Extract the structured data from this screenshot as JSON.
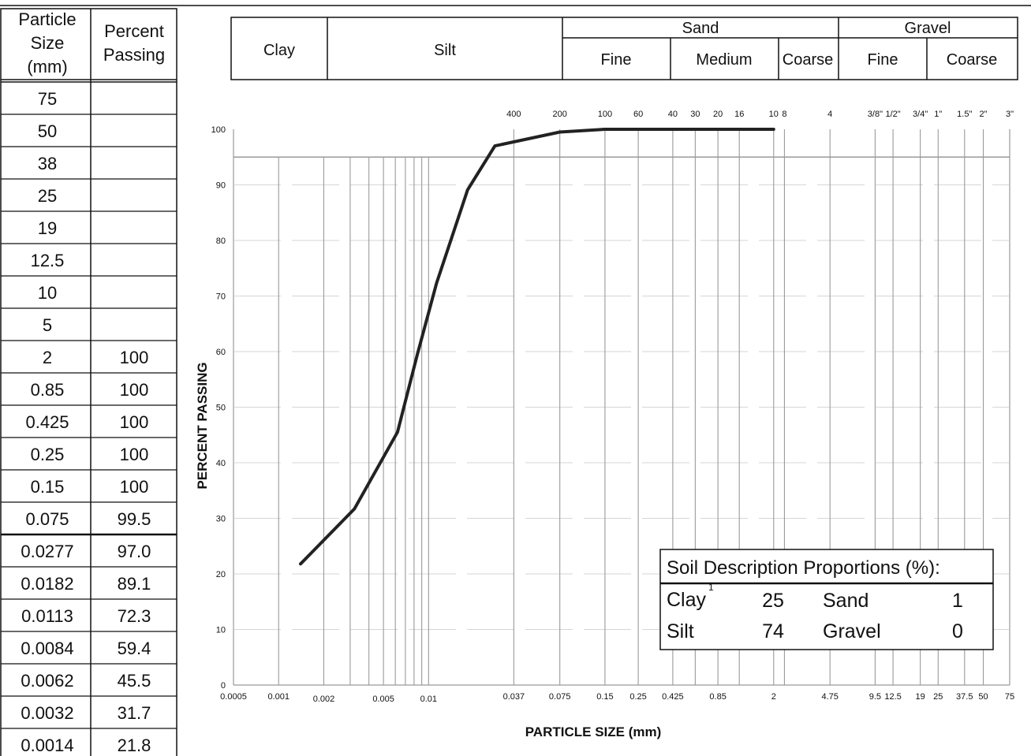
{
  "data_table": {
    "header": {
      "col1": [
        "Particle",
        "Size",
        "(mm)"
      ],
      "col2": [
        "Percent",
        "Passing"
      ]
    },
    "rows": [
      {
        "size": "75",
        "passing": ""
      },
      {
        "size": "50",
        "passing": ""
      },
      {
        "size": "38",
        "passing": ""
      },
      {
        "size": "25",
        "passing": ""
      },
      {
        "size": "19",
        "passing": ""
      },
      {
        "size": "12.5",
        "passing": ""
      },
      {
        "size": "10",
        "passing": ""
      },
      {
        "size": "5",
        "passing": ""
      },
      {
        "size": "2",
        "passing": "100"
      },
      {
        "size": "0.85",
        "passing": "100"
      },
      {
        "size": "0.425",
        "passing": "100"
      },
      {
        "size": "0.25",
        "passing": "100"
      },
      {
        "size": "0.15",
        "passing": "100"
      },
      {
        "size": "0.075",
        "passing": "99.5"
      },
      {
        "size": "0.0277",
        "passing": "97.0"
      },
      {
        "size": "0.0182",
        "passing": "89.1"
      },
      {
        "size": "0.0113",
        "passing": "72.3"
      },
      {
        "size": "0.0084",
        "passing": "59.4"
      },
      {
        "size": "0.0062",
        "passing": "45.5"
      },
      {
        "size": "0.0032",
        "passing": "31.7"
      },
      {
        "size": "0.0014",
        "passing": "21.8"
      }
    ]
  },
  "classification": {
    "clay": "Clay",
    "silt": "Silt",
    "sand": {
      "label": "Sand",
      "subs": [
        "Fine",
        "Medium",
        "Coarse"
      ]
    },
    "gravel": {
      "label": "Gravel",
      "subs": [
        "Fine",
        "Coarse"
      ]
    }
  },
  "sieve_labels": [
    {
      "label": "400",
      "mm": 0.037
    },
    {
      "label": "200",
      "mm": 0.075
    },
    {
      "label": "100",
      "mm": 0.15
    },
    {
      "label": "60",
      "mm": 0.25
    },
    {
      "label": "40",
      "mm": 0.425
    },
    {
      "label": "30",
      "mm": 0.6
    },
    {
      "label": "20",
      "mm": 0.85
    },
    {
      "label": "16",
      "mm": 1.18
    },
    {
      "label": "10",
      "mm": 2
    },
    {
      "label": "8",
      "mm": 2.36
    },
    {
      "label": "4",
      "mm": 4.75
    },
    {
      "label": "3/8\"",
      "mm": 9.5
    },
    {
      "label": "1/2\"",
      "mm": 12.5
    },
    {
      "label": "3/4\"",
      "mm": 19
    },
    {
      "label": "1\"",
      "mm": 25
    },
    {
      "label": "1.5\"",
      "mm": 37.5
    },
    {
      "label": "2\"",
      "mm": 50
    },
    {
      "label": "3\"",
      "mm": 75
    }
  ],
  "chart_data": {
    "type": "line",
    "xlabel": "PARTICLE SIZE (mm)",
    "ylabel": "PERCENT PASSING",
    "x_scale": "log",
    "xlim": [
      0.0005,
      75
    ],
    "ylim": [
      0,
      100
    ],
    "grid": true,
    "y_ticks": [
      0,
      10,
      20,
      30,
      40,
      50,
      60,
      70,
      80,
      90,
      100
    ],
    "x_ticks": [
      {
        "label": "0.0005",
        "value": 0.0005
      },
      {
        "label": "0.001",
        "value": 0.001
      },
      {
        "label": "0.002",
        "value": 0.002
      },
      {
        "label": "0.005",
        "value": 0.005
      },
      {
        "label": "0.01",
        "value": 0.01
      },
      {
        "label": "0.037",
        "value": 0.037
      },
      {
        "label": "0.075",
        "value": 0.075
      },
      {
        "label": "0.15",
        "value": 0.15
      },
      {
        "label": "0.25",
        "value": 0.25
      },
      {
        "label": "0.425",
        "value": 0.425
      },
      {
        "label": "0.85",
        "value": 0.85
      },
      {
        "label": "2",
        "value": 2
      },
      {
        "label": "4.75",
        "value": 4.75
      },
      {
        "label": "9.5",
        "value": 9.5
      },
      {
        "label": "12.5",
        "value": 12.5
      },
      {
        "label": "19",
        "value": 19
      },
      {
        "label": "25",
        "value": 25
      },
      {
        "label": "37.5",
        "value": 37.5
      },
      {
        "label": "50",
        "value": 50
      },
      {
        "label": "75",
        "value": 75
      }
    ],
    "series": [
      {
        "x": [
          0.0014,
          0.0032,
          0.0062,
          0.0084,
          0.0113,
          0.0182,
          0.0277,
          0.075,
          0.15,
          0.25,
          0.425,
          0.85,
          2
        ],
        "y": [
          21.8,
          31.7,
          45.5,
          59.4,
          72.3,
          89.1,
          97.0,
          99.5,
          100,
          100,
          100,
          100,
          100
        ]
      }
    ]
  },
  "proportions": {
    "title": "Soil Description Proportions (%):",
    "clay_label": "Clay",
    "clay_note": "1",
    "clay_value": "25",
    "silt_label": "Silt",
    "silt_value": "74",
    "sand_label": "Sand",
    "sand_value": "1",
    "gravel_label": "Gravel",
    "gravel_value": "0"
  },
  "colors": {
    "curve": "#222222",
    "grid": "#9a9a9a",
    "ink": "#111111"
  }
}
